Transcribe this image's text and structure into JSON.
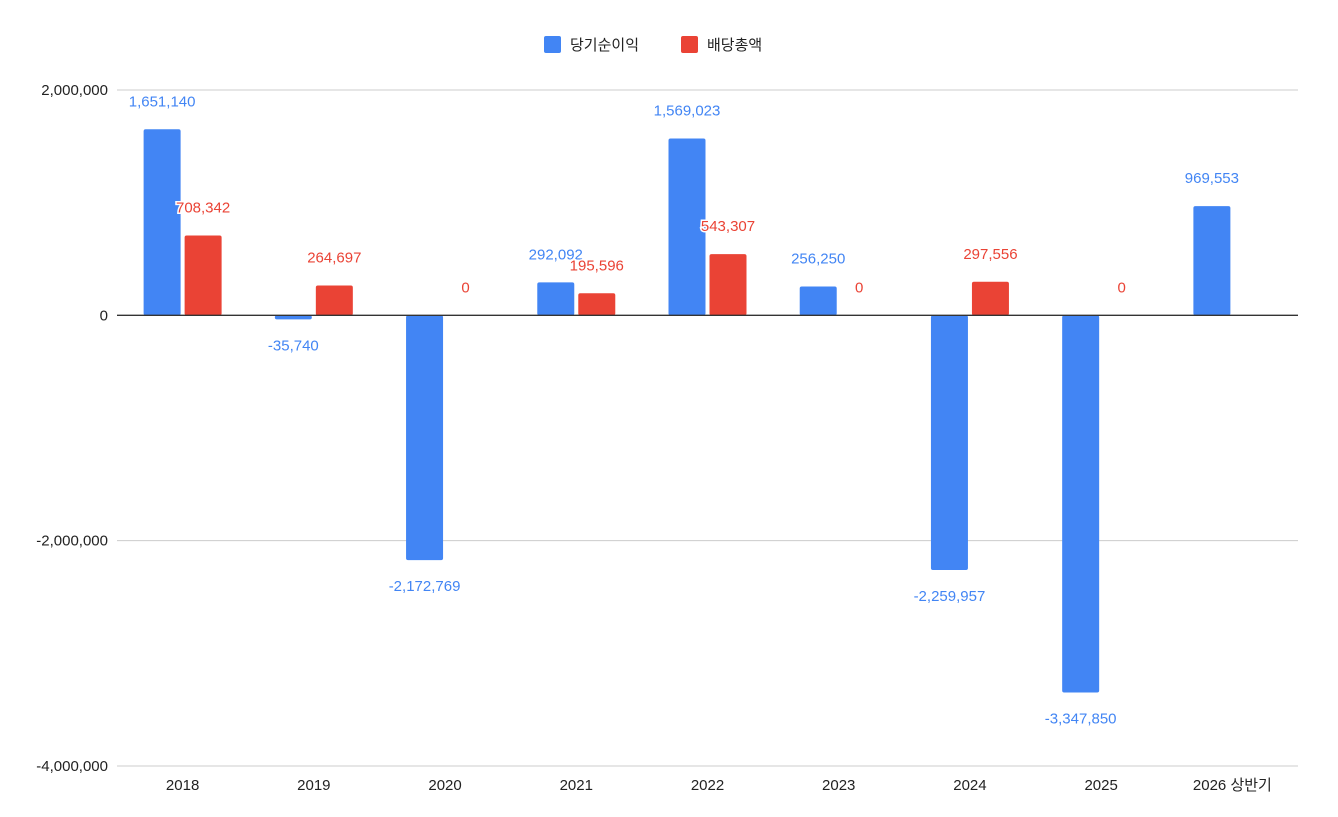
{
  "chart_data": {
    "type": "bar",
    "categories": [
      "2018",
      "2019",
      "2020",
      "2021",
      "2022",
      "2023",
      "2024",
      "2025",
      "2026 상반기"
    ],
    "series": [
      {
        "name": "당기순이익",
        "color": "#4285f4",
        "values": [
          1651140,
          -35740,
          -2172769,
          292092,
          1569023,
          256250,
          -2259957,
          -3347850,
          969553
        ],
        "labels": [
          "1,651,140",
          "-35,740",
          "-2,172,769",
          "292,092",
          "1,569,023",
          "256,250",
          "-2,259,957",
          "-3,347,850",
          "969,553"
        ]
      },
      {
        "name": "배당총액",
        "color": "#ea4335",
        "values": [
          708342,
          264697,
          0,
          195596,
          543307,
          0,
          297556,
          0,
          null
        ],
        "labels": [
          "708,342",
          "264,697",
          "0",
          "195,596",
          "543,307",
          "0",
          "297,556",
          "0",
          null
        ]
      }
    ],
    "yticks": [
      2000000,
      0,
      -2000000,
      -4000000
    ],
    "ytick_labels": [
      "2,000,000",
      "0",
      "-2,000,000",
      "-4,000,000"
    ],
    "ylim": [
      -4000000,
      2000000
    ],
    "grid": true,
    "legend_position": "top-center",
    "title": "",
    "xlabel": "",
    "ylabel": ""
  }
}
